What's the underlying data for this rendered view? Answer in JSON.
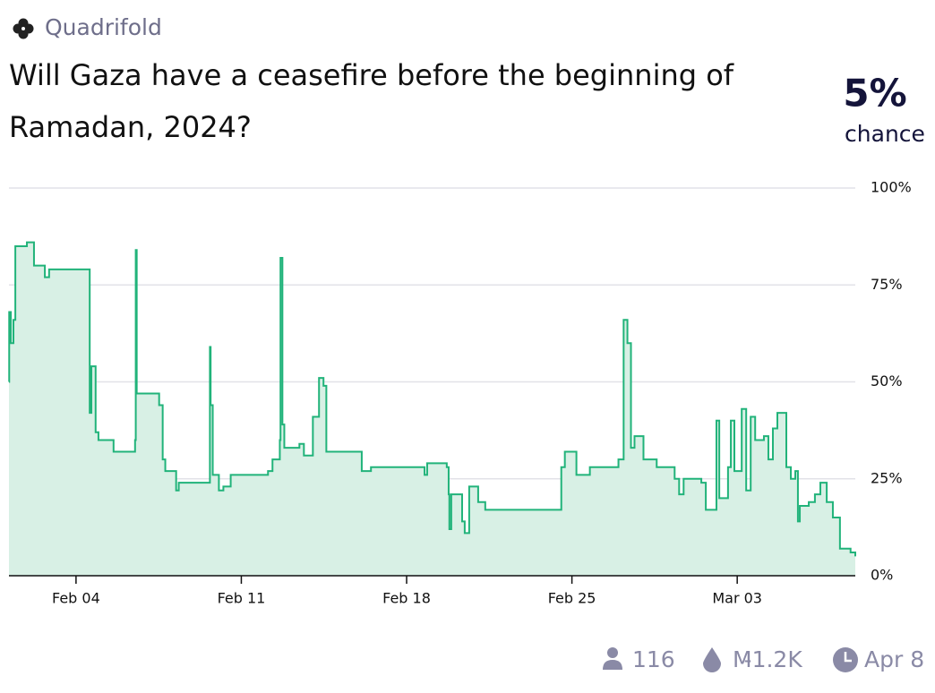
{
  "header": {
    "creator": "Quadrifold",
    "chance": "5%",
    "chance_label": "chance"
  },
  "footer": {
    "traders": "116",
    "volume": "M̵1.2K",
    "close_date": "Apr 8"
  },
  "chart_data": {
    "type": "line",
    "title": "Will Gaza have a ceasefire before the beginning of Ramadan, 2024?",
    "color": "#21b37a",
    "fill": "#d8f0e5",
    "grid": true,
    "xlim": [
      1.16,
      37.0
    ],
    "xticks": [
      {
        "value": 4,
        "label": "Feb 04"
      },
      {
        "value": 11,
        "label": "Feb 11"
      },
      {
        "value": 18,
        "label": "Feb 18"
      },
      {
        "value": 25,
        "label": "Feb 25"
      },
      {
        "value": 32,
        "label": "Mar 03"
      }
    ],
    "ylim": [
      0,
      100
    ],
    "yticks": [
      {
        "value": 0,
        "label": "0%"
      },
      {
        "value": 25,
        "label": "25%"
      },
      {
        "value": 50,
        "label": "50%"
      },
      {
        "value": 75,
        "label": "75%"
      },
      {
        "value": 100,
        "label": "100%"
      }
    ],
    "x": [
      1.16,
      1.17,
      1.24,
      1.35,
      1.43,
      1.92,
      2.22,
      2.68,
      2.86,
      4.57,
      4.58,
      4.65,
      4.83,
      4.95,
      5.51,
      5.59,
      6.46,
      6.5,
      6.53,
      6.57,
      7.29,
      7.52,
      7.67,
      7.78,
      8.24,
      8.35,
      9.64,
      9.67,
      9.7,
      9.79,
      10.05,
      10.24,
      10.55,
      11.19,
      12.13,
      12.32,
      12.63,
      12.66,
      12.74,
      12.82,
      13.46,
      13.65,
      14.03,
      14.29,
      14.48,
      14.6,
      15.35,
      16.1,
      16.49,
      18.19,
      18.76,
      18.87,
      19.7,
      19.78,
      19.81,
      19.89,
      20.27,
      20.35,
      20.46,
      20.65,
      21.03,
      21.33,
      24.43,
      24.55,
      24.7,
      25.0,
      25.19,
      25.76,
      26.89,
      26.97,
      27.19,
      27.35,
      27.5,
      27.65,
      28.03,
      28.59,
      29.35,
      29.54,
      29.73,
      30.48,
      30.67,
      31.05,
      31.12,
      31.24,
      31.61,
      31.73,
      31.88,
      32.19,
      32.38,
      32.57,
      32.76,
      33.13,
      33.32,
      33.51,
      33.7,
      34.0,
      34.08,
      34.27,
      34.46,
      34.57,
      34.65,
      35.03,
      35.29,
      35.52,
      35.79,
      36.05,
      36.35,
      36.8,
      37.0
    ],
    "values": [
      50,
      68,
      60,
      66,
      85,
      86,
      80,
      77,
      79,
      79,
      42,
      54,
      37,
      35,
      35,
      32,
      32,
      35,
      84,
      47,
      47,
      44,
      30,
      27,
      22,
      24,
      24,
      59,
      44,
      26,
      22,
      23,
      26,
      26,
      27,
      30,
      35,
      82,
      39,
      33,
      34,
      31,
      41,
      51,
      49,
      32,
      32,
      27,
      28,
      28,
      26,
      29,
      28,
      21,
      12,
      21,
      21,
      14,
      11,
      23,
      19,
      17,
      17,
      28,
      32,
      32,
      26,
      28,
      28,
      30,
      66,
      60,
      33,
      36,
      30,
      28,
      25,
      21,
      25,
      24,
      17,
      17,
      40,
      20,
      28,
      40,
      27,
      43,
      22,
      41,
      35,
      36,
      30,
      38,
      42,
      42,
      28,
      25,
      27,
      14,
      18,
      19,
      21,
      24,
      19,
      15,
      7,
      6,
      5
    ]
  }
}
